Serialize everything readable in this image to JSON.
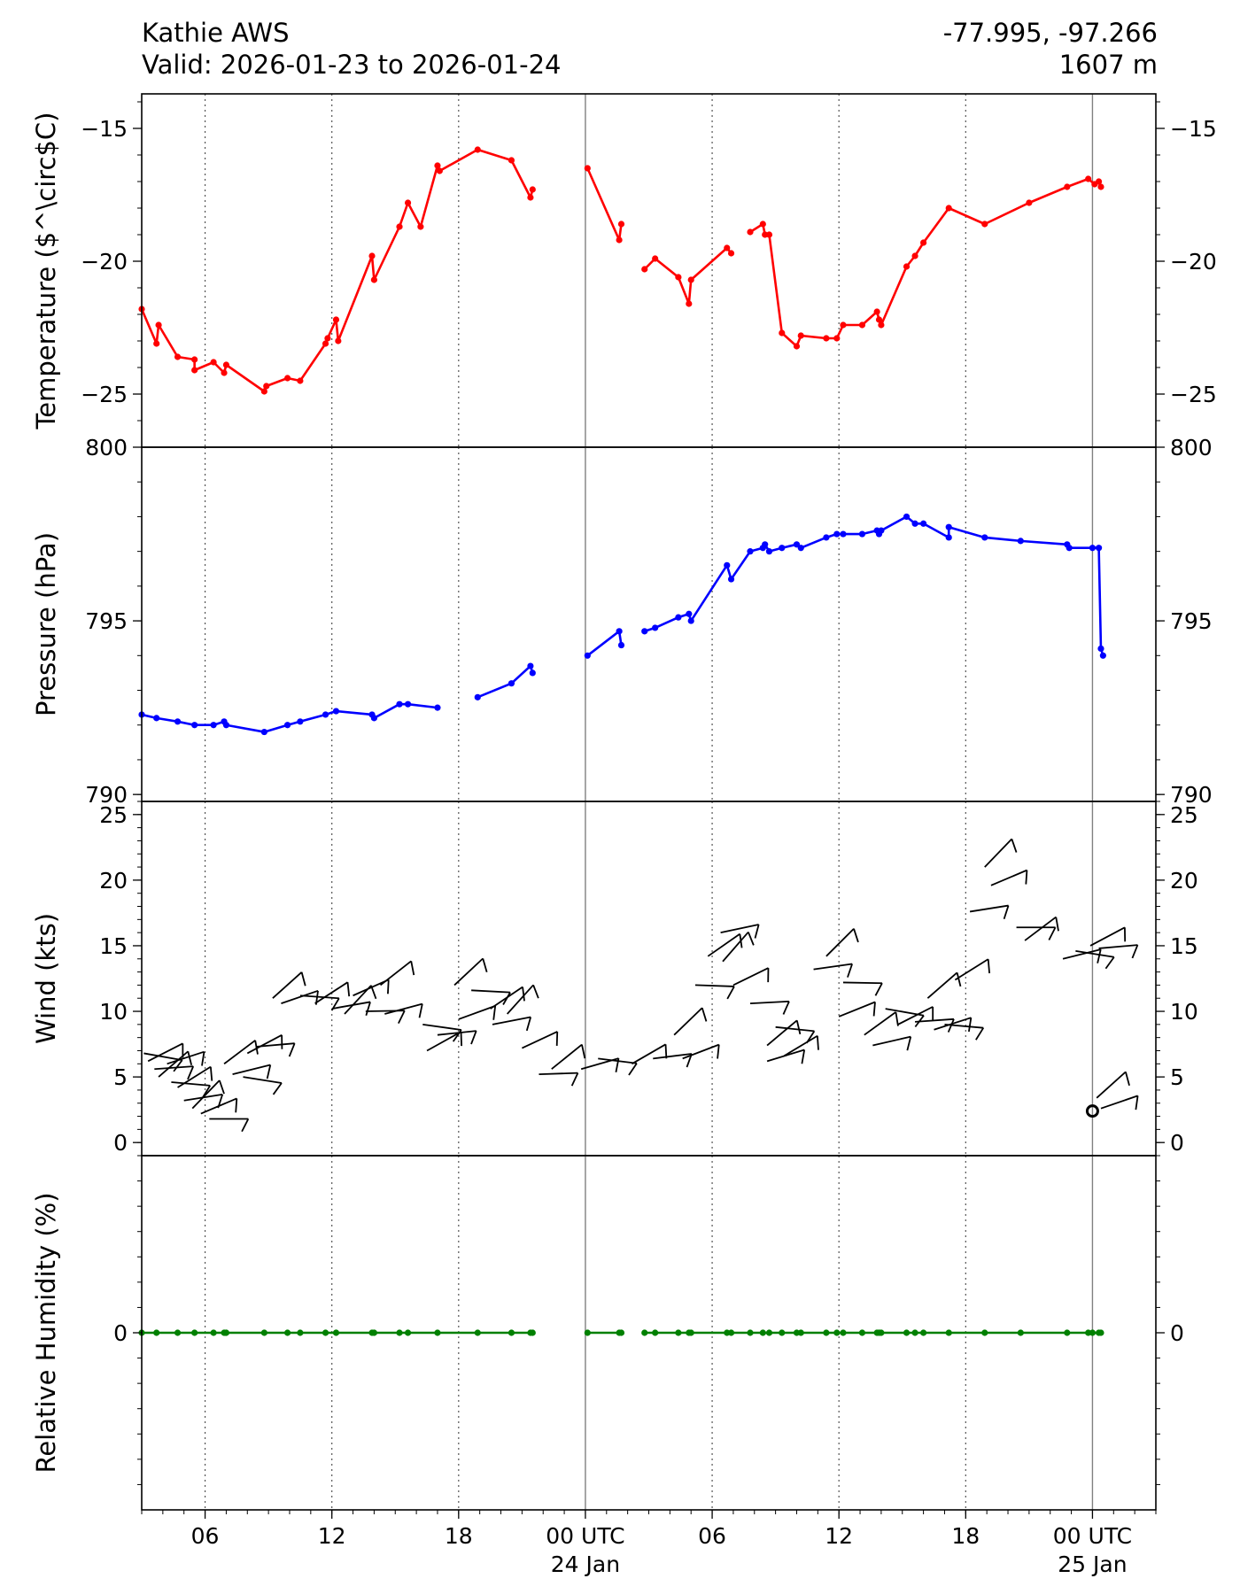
{
  "header": {
    "station": "Kathie AWS",
    "valid": "Valid: 2026-01-23 to 2026-01-24",
    "coords": "-77.995, -97.266",
    "elevation": "1607 m"
  },
  "x_axis": {
    "ticks": [
      {
        "t": 6,
        "label": "06"
      },
      {
        "t": 12,
        "label": "12"
      },
      {
        "t": 18,
        "label": "18"
      },
      {
        "t": 24,
        "label": "00 UTC",
        "label2": "24 Jan"
      },
      {
        "t": 30,
        "label": "06"
      },
      {
        "t": 36,
        "label": "12"
      },
      {
        "t": 42,
        "label": "18"
      },
      {
        "t": 48,
        "label": "00 UTC",
        "label2": "25 Jan"
      }
    ],
    "range_hours": [
      3,
      51
    ]
  },
  "chart_data": [
    {
      "type": "line",
      "panel": "temperature",
      "ylabel": "Temperature ($^\\circ$C)",
      "ylim": [
        -27.0,
        -13.7
      ],
      "yticks": [
        -15,
        -20,
        -25
      ],
      "color": "#ff0000",
      "x_units": "hours since 2026-01-23 00 UTC",
      "series": [
        {
          "segment": [
            [
              3.0,
              -21.8
            ],
            [
              3.7,
              -23.1
            ],
            [
              3.8,
              -22.4
            ],
            [
              4.7,
              -23.6
            ],
            [
              5.5,
              -23.7
            ],
            [
              5.5,
              -24.1
            ],
            [
              6.4,
              -23.8
            ],
            [
              6.9,
              -24.2
            ],
            [
              7.0,
              -23.9
            ],
            [
              8.8,
              -24.9
            ],
            [
              8.9,
              -24.7
            ],
            [
              9.9,
              -24.4
            ],
            [
              10.5,
              -24.5
            ],
            [
              11.7,
              -23.1
            ],
            [
              11.8,
              -22.9
            ],
            [
              12.2,
              -22.2
            ],
            [
              12.3,
              -23.0
            ],
            [
              13.9,
              -19.8
            ],
            [
              14.0,
              -20.7
            ],
            [
              15.2,
              -18.7
            ],
            [
              15.6,
              -17.8
            ],
            [
              16.2,
              -18.7
            ],
            [
              17.0,
              -16.4
            ],
            [
              17.1,
              -16.6
            ],
            [
              18.9,
              -15.8
            ],
            [
              20.5,
              -16.2
            ],
            [
              21.4,
              -17.6
            ],
            [
              21.5,
              -17.3
            ]
          ]
        },
        {
          "segment": [
            [
              24.1,
              -16.5
            ],
            [
              25.6,
              -19.2
            ],
            [
              25.7,
              -18.6
            ]
          ]
        },
        {
          "segment": [
            [
              26.8,
              -20.3
            ],
            [
              27.3,
              -19.9
            ],
            [
              28.4,
              -20.6
            ],
            [
              28.9,
              -21.6
            ],
            [
              29.0,
              -20.7
            ],
            [
              30.7,
              -19.5
            ],
            [
              30.9,
              -19.7
            ]
          ]
        },
        {
          "segment": [
            [
              31.8,
              -18.9
            ],
            [
              32.4,
              -18.6
            ],
            [
              32.5,
              -19.0
            ],
            [
              32.7,
              -19.0
            ],
            [
              33.3,
              -22.7
            ],
            [
              34.0,
              -23.2
            ],
            [
              34.2,
              -22.8
            ],
            [
              35.4,
              -22.9
            ],
            [
              35.9,
              -22.9
            ],
            [
              36.2,
              -22.4
            ],
            [
              37.1,
              -22.4
            ],
            [
              37.8,
              -21.9
            ],
            [
              37.9,
              -22.2
            ],
            [
              38.0,
              -22.4
            ],
            [
              39.2,
              -20.2
            ],
            [
              39.6,
              -19.8
            ],
            [
              40.0,
              -19.3
            ],
            [
              41.2,
              -18.0
            ],
            [
              42.9,
              -18.6
            ],
            [
              45.0,
              -17.8
            ],
            [
              46.8,
              -17.2
            ],
            [
              47.8,
              -16.9
            ],
            [
              48.1,
              -17.1
            ],
            [
              48.3,
              -17.0
            ],
            [
              48.4,
              -17.2
            ]
          ]
        }
      ]
    },
    {
      "type": "line",
      "panel": "pressure",
      "ylabel": "Pressure (hPa)",
      "ylim": [
        789.8,
        800.0
      ],
      "yticks": [
        800,
        795,
        790
      ],
      "color": "#0000ff",
      "series": [
        {
          "segment": [
            [
              3.0,
              792.3
            ],
            [
              3.7,
              792.2
            ],
            [
              4.7,
              792.1
            ],
            [
              5.5,
              792.0
            ],
            [
              6.4,
              792.0
            ],
            [
              6.9,
              792.1
            ],
            [
              7.0,
              792.0
            ],
            [
              8.8,
              791.8
            ],
            [
              9.9,
              792.0
            ],
            [
              10.5,
              792.1
            ],
            [
              11.7,
              792.3
            ],
            [
              12.2,
              792.4
            ],
            [
              13.9,
              792.3
            ],
            [
              14.0,
              792.2
            ],
            [
              15.2,
              792.6
            ],
            [
              15.6,
              792.6
            ],
            [
              17.0,
              792.5
            ]
          ]
        },
        {
          "segment": [
            [
              18.9,
              792.8
            ],
            [
              20.5,
              793.2
            ],
            [
              21.4,
              793.7
            ],
            [
              21.5,
              793.5
            ]
          ]
        },
        {
          "segment": [
            [
              24.1,
              794.0
            ],
            [
              25.6,
              794.7
            ],
            [
              25.7,
              794.3
            ]
          ]
        },
        {
          "segment": [
            [
              26.8,
              794.7
            ],
            [
              27.3,
              794.8
            ],
            [
              28.4,
              795.1
            ],
            [
              28.9,
              795.2
            ],
            [
              29.0,
              795.0
            ],
            [
              30.7,
              796.6
            ],
            [
              30.9,
              796.2
            ],
            [
              31.8,
              797.0
            ],
            [
              32.4,
              797.1
            ],
            [
              32.5,
              797.2
            ],
            [
              32.7,
              797.0
            ],
            [
              33.3,
              797.1
            ],
            [
              34.0,
              797.2
            ],
            [
              34.2,
              797.1
            ],
            [
              35.4,
              797.4
            ],
            [
              35.9,
              797.5
            ],
            [
              36.2,
              797.5
            ],
            [
              37.1,
              797.5
            ],
            [
              37.8,
              797.6
            ],
            [
              37.9,
              797.5
            ],
            [
              38.0,
              797.6
            ],
            [
              39.2,
              798.0
            ],
            [
              39.6,
              797.8
            ],
            [
              40.0,
              797.8
            ],
            [
              41.2,
              797.4
            ],
            [
              41.2,
              797.7
            ],
            [
              42.9,
              797.4
            ],
            [
              44.6,
              797.3
            ],
            [
              46.8,
              797.2
            ],
            [
              46.9,
              797.1
            ],
            [
              48.0,
              797.1
            ],
            [
              48.3,
              797.1
            ],
            [
              48.4,
              794.2
            ],
            [
              48.5,
              794.0
            ]
          ]
        }
      ]
    },
    {
      "type": "scatter",
      "panel": "wind",
      "ylabel": "Wind (kts)",
      "ylim": [
        -1,
        26
      ],
      "yticks": [
        0,
        5,
        10,
        15,
        20,
        25
      ],
      "note": "wind barbs plotted at (time, speed)",
      "points": [
        [
          3.1,
          6.8
        ],
        [
          3.3,
          6.2
        ],
        [
          3.6,
          5.6
        ],
        [
          3.8,
          5.0
        ],
        [
          4.2,
          6.0
        ],
        [
          4.4,
          4.6
        ],
        [
          4.7,
          4.2
        ],
        [
          5.0,
          3.2
        ],
        [
          5.4,
          2.6
        ],
        [
          5.8,
          2.2
        ],
        [
          6.2,
          1.8
        ],
        [
          6.9,
          6.0
        ],
        [
          7.3,
          5.2
        ],
        [
          7.8,
          5.0
        ],
        [
          8.0,
          6.8
        ],
        [
          8.4,
          7.3
        ],
        [
          9.2,
          11.0
        ],
        [
          9.6,
          10.6
        ],
        [
          10.5,
          11.2
        ],
        [
          11.2,
          10.6
        ],
        [
          12.0,
          10.2
        ],
        [
          12.6,
          9.8
        ],
        [
          13.0,
          11.2
        ],
        [
          13.6,
          10.0
        ],
        [
          14.3,
          12.0
        ],
        [
          14.5,
          9.8
        ],
        [
          16.3,
          9.0
        ],
        [
          16.5,
          7.0
        ],
        [
          17.0,
          8.2
        ],
        [
          17.8,
          12.0
        ],
        [
          18.0,
          9.4
        ],
        [
          18.6,
          11.6
        ],
        [
          19.5,
          10.2
        ],
        [
          19.6,
          9.0
        ],
        [
          20.3,
          9.8
        ],
        [
          21.0,
          7.2
        ],
        [
          21.8,
          5.2
        ],
        [
          22.4,
          5.6
        ],
        [
          23.8,
          5.6
        ],
        [
          24.6,
          6.4
        ],
        [
          26.2,
          6.0
        ],
        [
          27.2,
          6.4
        ],
        [
          28.2,
          8.2
        ],
        [
          28.6,
          6.4
        ],
        [
          29.2,
          12.0
        ],
        [
          29.8,
          14.2
        ],
        [
          30.4,
          16.0
        ],
        [
          30.5,
          13.8
        ],
        [
          31.0,
          12.0
        ],
        [
          31.8,
          10.6
        ],
        [
          32.6,
          7.4
        ],
        [
          32.6,
          6.2
        ],
        [
          33.0,
          8.8
        ],
        [
          33.4,
          6.6
        ],
        [
          34.8,
          13.2
        ],
        [
          35.4,
          14.2
        ],
        [
          36.0,
          9.6
        ],
        [
          36.2,
          12.2
        ],
        [
          37.2,
          8.2
        ],
        [
          37.6,
          7.4
        ],
        [
          38.2,
          10.2
        ],
        [
          38.8,
          9.0
        ],
        [
          39.6,
          9.2
        ],
        [
          40.2,
          11.0
        ],
        [
          40.5,
          8.6
        ],
        [
          41.0,
          9.0
        ],
        [
          41.5,
          12.4
        ],
        [
          42.2,
          17.6
        ],
        [
          42.9,
          21.0
        ],
        [
          43.2,
          19.6
        ],
        [
          44.4,
          16.4
        ],
        [
          44.8,
          15.4
        ],
        [
          46.6,
          14.0
        ],
        [
          47.2,
          14.6
        ],
        [
          47.9,
          15.0
        ],
        [
          48.3,
          14.8
        ],
        [
          48.2,
          3.4
        ],
        [
          48.4,
          2.6
        ]
      ],
      "calm_marker": [
        48.0,
        2.4
      ]
    },
    {
      "type": "line",
      "panel": "humidity",
      "ylabel": "Relative Humidity (%)",
      "ylim": [
        -0.07,
        0.07
      ],
      "yticks": [
        0
      ],
      "color": "#008000",
      "series": [
        {
          "segment": [
            [
              3.0,
              0
            ],
            [
              3.7,
              0
            ],
            [
              4.7,
              0
            ],
            [
              5.5,
              0
            ],
            [
              6.4,
              0
            ],
            [
              6.9,
              0
            ],
            [
              7.0,
              0
            ],
            [
              8.8,
              0
            ],
            [
              9.9,
              0
            ],
            [
              10.5,
              0
            ],
            [
              11.7,
              0
            ],
            [
              12.2,
              0
            ],
            [
              13.9,
              0
            ],
            [
              14.0,
              0
            ],
            [
              15.2,
              0
            ],
            [
              15.6,
              0
            ],
            [
              17.0,
              0
            ],
            [
              18.9,
              0
            ],
            [
              20.5,
              0
            ],
            [
              21.4,
              0
            ],
            [
              21.5,
              0
            ]
          ]
        },
        {
          "segment": [
            [
              24.1,
              0
            ],
            [
              25.6,
              0
            ],
            [
              25.7,
              0
            ]
          ]
        },
        {
          "segment": [
            [
              26.8,
              0
            ],
            [
              27.3,
              0
            ],
            [
              28.4,
              0
            ],
            [
              28.9,
              0
            ],
            [
              29.0,
              0
            ],
            [
              30.7,
              0
            ],
            [
              30.9,
              0
            ],
            [
              31.8,
              0
            ],
            [
              32.4,
              0
            ],
            [
              32.7,
              0
            ],
            [
              33.3,
              0
            ],
            [
              34.0,
              0
            ],
            [
              34.2,
              0
            ],
            [
              35.4,
              0
            ],
            [
              35.9,
              0
            ],
            [
              36.2,
              0
            ],
            [
              37.1,
              0
            ],
            [
              37.8,
              0
            ],
            [
              37.9,
              0
            ],
            [
              38.0,
              0
            ],
            [
              39.2,
              0
            ],
            [
              39.6,
              0
            ],
            [
              40.0,
              0
            ],
            [
              41.2,
              0
            ],
            [
              42.9,
              0
            ],
            [
              44.6,
              0
            ],
            [
              46.8,
              0
            ],
            [
              47.8,
              0
            ],
            [
              48.0,
              0
            ],
            [
              48.3,
              0
            ],
            [
              48.4,
              0
            ]
          ]
        }
      ]
    }
  ]
}
